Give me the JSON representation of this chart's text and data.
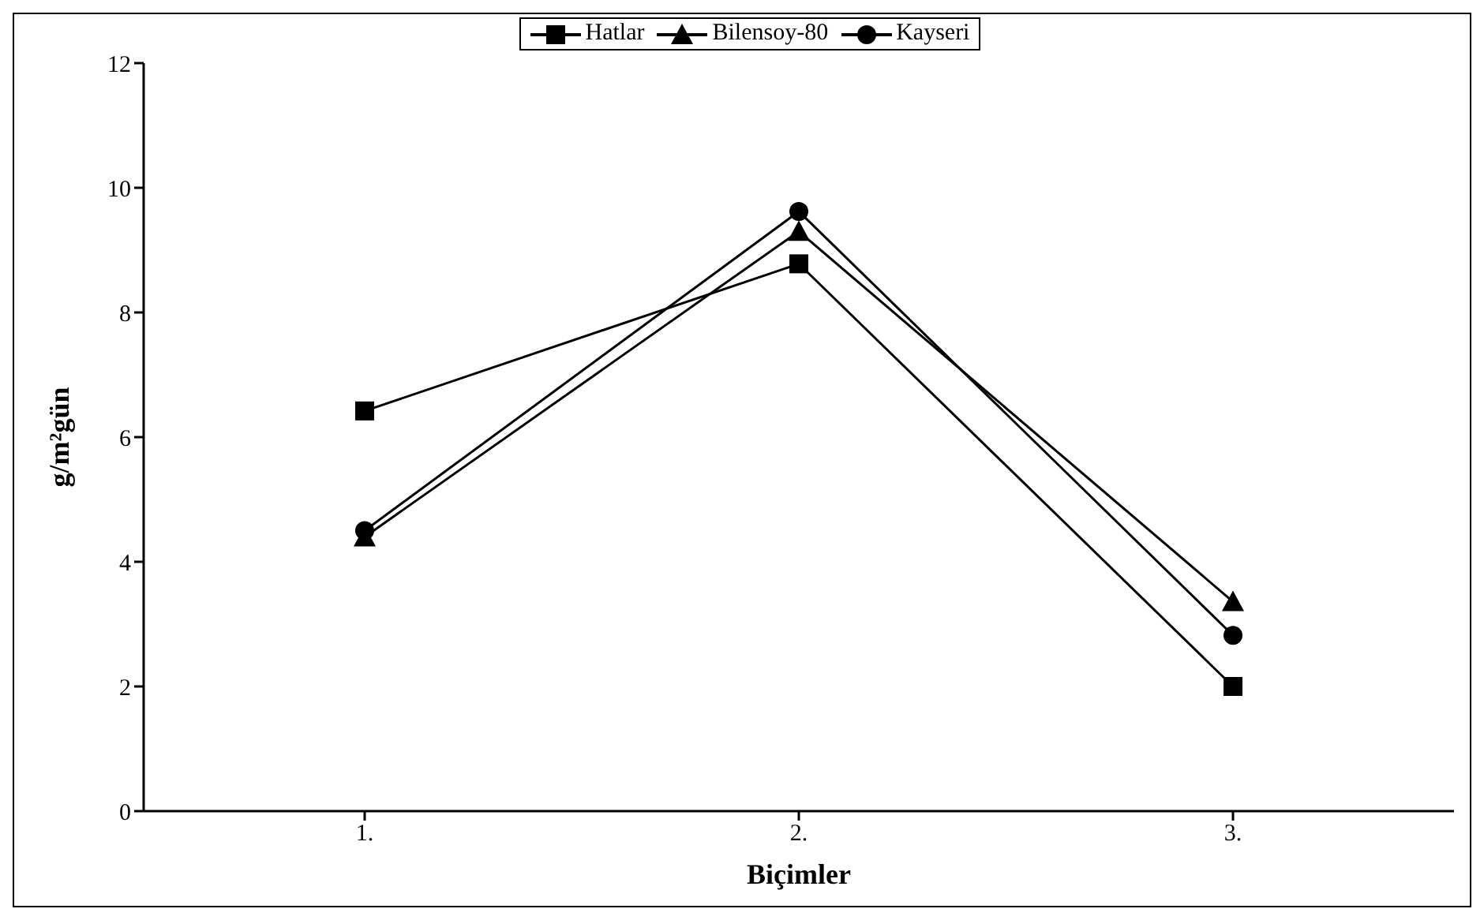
{
  "chart_data": {
    "type": "line",
    "xlabel": "Biçimler",
    "ylabel": "g/m²gün",
    "categories": [
      "1.",
      "2.",
      "3."
    ],
    "series": [
      {
        "name": "Hatlar",
        "color": "#000000",
        "marker": "square",
        "values": [
          6.42,
          8.78,
          2.0
        ]
      },
      {
        "name": "Bilensoy-80",
        "color": "#000000",
        "marker": "triangle",
        "values": [
          4.4,
          9.3,
          3.36
        ]
      },
      {
        "name": "Kayseri",
        "color": "#000000",
        "marker": "circle",
        "values": [
          4.5,
          9.62,
          2.82
        ]
      }
    ],
    "ylim": [
      0,
      12
    ],
    "yticks": [
      0,
      2,
      4,
      6,
      8,
      10,
      12
    ],
    "grid": false,
    "legend": "top",
    "line_style": "solid"
  }
}
